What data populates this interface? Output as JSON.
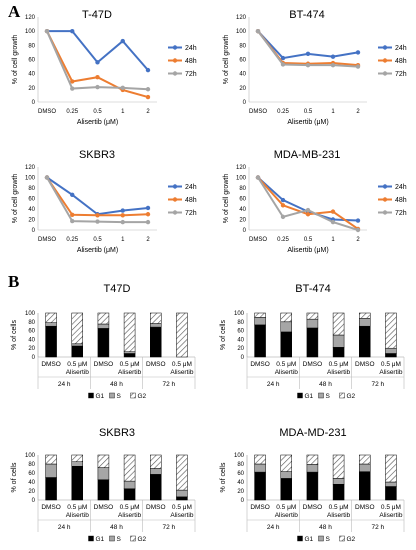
{
  "panel_labels": {
    "a": "A",
    "b": "B"
  },
  "colors": {
    "h24": "#4472C4",
    "h48": "#ED7D31",
    "h72": "#A5A5A5",
    "g1": "#000000",
    "s": "#A6A6A6",
    "g2_hatch": "#555555"
  },
  "line_common": {
    "categories": [
      "DMSO",
      "0.25",
      "0.5",
      "1",
      "2"
    ],
    "xlabel": "Alisertib (μM)",
    "ylabel": "% of cell growth",
    "legend": [
      "24h",
      "48h",
      "72h"
    ],
    "yticks": [
      "0",
      "20",
      "40",
      "60",
      "80",
      "100",
      "120"
    ]
  },
  "bar_common": {
    "ylabel": "% of cells",
    "yticks": [
      "0",
      "20",
      "40",
      "60",
      "80",
      "100"
    ],
    "tick_dmso": "DMSO",
    "tick_treat_1": "0.5 μM",
    "tick_treat_2": "Alisertib",
    "groups": [
      "24 h",
      "48 h",
      "72 h"
    ],
    "legend": [
      "G1",
      "S",
      "G2"
    ]
  },
  "chart_data": [
    {
      "type": "line",
      "title": "T-47D",
      "categories": [
        "DMSO",
        "0.25",
        "0.5",
        "1",
        "2"
      ],
      "xlabel": "Alisertib (μM)",
      "ylabel": "% of cell growth",
      "ylim": [
        0,
        120
      ],
      "legend_position": "right",
      "series": [
        {
          "name": "24h",
          "values": [
            100,
            100,
            56,
            86,
            45
          ]
        },
        {
          "name": "48h",
          "values": [
            100,
            29,
            35,
            17,
            7
          ]
        },
        {
          "name": "72h",
          "values": [
            100,
            19,
            21,
            20,
            18
          ]
        }
      ]
    },
    {
      "type": "line",
      "title": "BT-474",
      "categories": [
        "DMSO",
        "0.25",
        "0.5",
        "1",
        "2"
      ],
      "xlabel": "Alisertib (μM)",
      "ylabel": "% of cell growth",
      "ylim": [
        0,
        120
      ],
      "legend_position": "right",
      "series": [
        {
          "name": "24h",
          "values": [
            100,
            62,
            68,
            64,
            70
          ]
        },
        {
          "name": "48h",
          "values": [
            100,
            55,
            54,
            55,
            52
          ]
        },
        {
          "name": "72h",
          "values": [
            100,
            53,
            52,
            52,
            50
          ]
        }
      ]
    },
    {
      "type": "line",
      "title": "SKBR3",
      "categories": [
        "DMSO",
        "0.25",
        "0.5",
        "1",
        "2"
      ],
      "xlabel": "Alisertib (μM)",
      "ylabel": "% of cell growth",
      "ylim": [
        0,
        120
      ],
      "legend_position": "right",
      "series": [
        {
          "name": "24h",
          "values": [
            100,
            67,
            30,
            37,
            42
          ]
        },
        {
          "name": "48h",
          "values": [
            100,
            29,
            28,
            28,
            30
          ]
        },
        {
          "name": "72h",
          "values": [
            100,
            17,
            16,
            15,
            15
          ]
        }
      ]
    },
    {
      "type": "line",
      "title": "MDA-MB-231",
      "categories": [
        "DMSO",
        "0.25",
        "0.5",
        "1",
        "2"
      ],
      "xlabel": "Alisertib (μM)",
      "ylabel": "% of cell growth",
      "ylim": [
        0,
        120
      ],
      "legend_position": "right",
      "series": [
        {
          "name": "24h",
          "values": [
            100,
            57,
            35,
            20,
            18
          ]
        },
        {
          "name": "48h",
          "values": [
            100,
            47,
            30,
            35,
            2
          ]
        },
        {
          "name": "72h",
          "values": [
            100,
            25,
            38,
            15,
            0
          ]
        }
      ]
    },
    {
      "type": "bar",
      "stacked": true,
      "title": "T47D",
      "categories": [
        "DMSO 24 h",
        "0.5 μM Alisertib 24 h",
        "DMSO 48 h",
        "0.5 μM Alisertib 48 h",
        "DMSO 72 h",
        "0.5 μM Alisertib 72 h"
      ],
      "ylabel": "% of cells",
      "ylim": [
        0,
        100
      ],
      "series": [
        {
          "name": "G1",
          "values": [
            70,
            25,
            65,
            8,
            68,
            0
          ]
        },
        {
          "name": "S",
          "values": [
            8,
            5,
            10,
            4,
            8,
            0
          ]
        },
        {
          "name": "G2",
          "values": [
            22,
            70,
            25,
            88,
            24,
            100
          ]
        }
      ]
    },
    {
      "type": "bar",
      "stacked": true,
      "title": "BT-474",
      "categories": [
        "DMSO 24 h",
        "0.5 μM Alisertib 24 h",
        "DMSO 48 h",
        "0.5 μM Alisertib 48 h",
        "DMSO 72 h",
        "0.5 μM Alisertib 72 h"
      ],
      "ylabel": "% of cells",
      "ylim": [
        0,
        100
      ],
      "series": [
        {
          "name": "G1",
          "values": [
            73,
            57,
            66,
            22,
            70,
            8
          ]
        },
        {
          "name": "S",
          "values": [
            17,
            23,
            20,
            28,
            18,
            12
          ]
        },
        {
          "name": "G2",
          "values": [
            10,
            20,
            14,
            50,
            12,
            80
          ]
        }
      ]
    },
    {
      "type": "bar",
      "stacked": true,
      "title": "SKBR3",
      "categories": [
        "DMSO 24 h",
        "0.5 μM Alisertib 24 h",
        "DMSO 48 h",
        "0.5 μM Alisertib 48 h",
        "DMSO 72 h",
        "0.5 μM Alisertib 72 h"
      ],
      "ylabel": "% of cells",
      "ylim": [
        0,
        100
      ],
      "series": [
        {
          "name": "G1",
          "values": [
            50,
            75,
            45,
            25,
            57,
            7
          ]
        },
        {
          "name": "S",
          "values": [
            30,
            10,
            27,
            17,
            13,
            15
          ]
        },
        {
          "name": "G2",
          "values": [
            20,
            15,
            28,
            58,
            30,
            78
          ]
        }
      ]
    },
    {
      "type": "bar",
      "stacked": true,
      "title": "MDA-MD-231",
      "categories": [
        "DMSO 24 h",
        "0.5 μM Alisertib 24 h",
        "DMSO 48 h",
        "0.5 μM Alisertib 48 h",
        "DMSO 72 h",
        "0.5 μM Alisertib 72 h"
      ],
      "ylabel": "% of cells",
      "ylim": [
        0,
        100
      ],
      "series": [
        {
          "name": "G1",
          "values": [
            62,
            48,
            62,
            35,
            63,
            30
          ]
        },
        {
          "name": "S",
          "values": [
            18,
            15,
            17,
            13,
            17,
            10
          ]
        },
        {
          "name": "G2",
          "values": [
            20,
            37,
            21,
            52,
            20,
            60
          ]
        }
      ]
    }
  ]
}
